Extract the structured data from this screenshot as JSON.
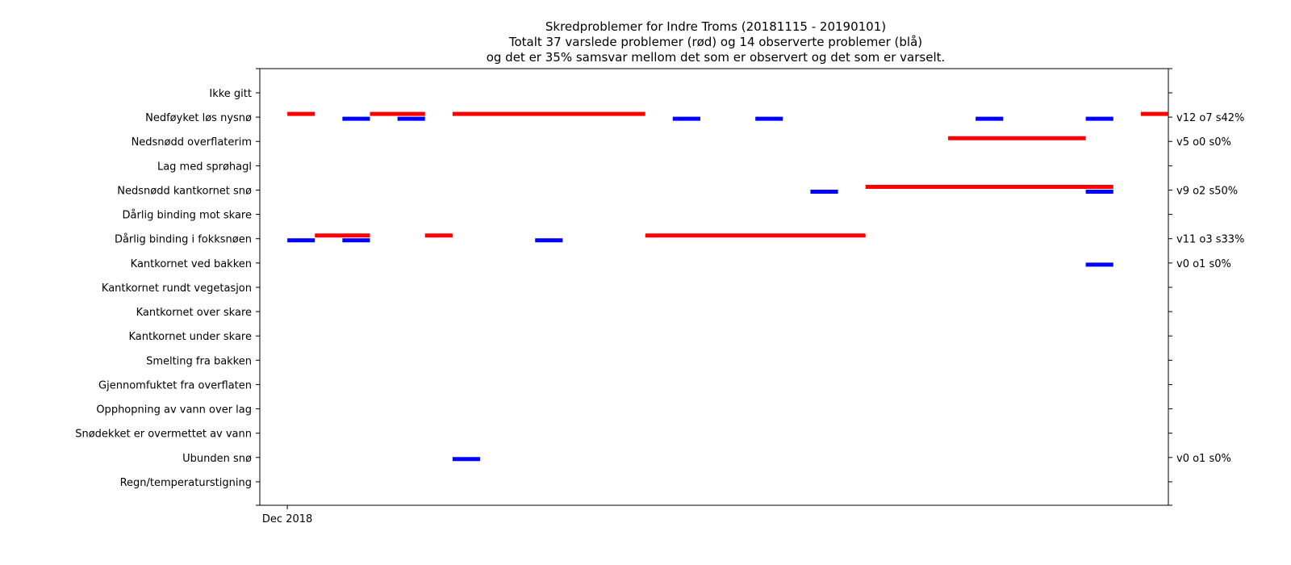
{
  "chart_data": {
    "type": "timeline",
    "title": [
      "Skredproblemer for Indre Troms (20181115 - 20190101)",
      "Totalt 37 varslede problemer (rød) og 14 observerte problemer (blå)",
      "og det er 35% samsvar mellom det som er observert og det som er varselt."
    ],
    "x_tick_labels": [
      {
        "date": "2018-12-01",
        "label": "Dec 2018"
      }
    ],
    "xlim": [
      "2018-11-30",
      "2019-01-02"
    ],
    "categories": [
      "Ikke gitt",
      "Nedføyket løs nysnø",
      "Nedsnødd overflaterim",
      "Lag med sprøhagl",
      "Nedsnødd kantkornet snø",
      "Dårlig binding mot skare",
      "Dårlig binding i fokksnøen",
      "Kantkornet ved bakken",
      "Kantkornet rundt vegetasjon",
      "Kantkornet over skare",
      "Kantkornet under skare",
      "Smelting fra bakken",
      "Gjennomfuktet fra overflaten",
      "Opphopning av vann over lag",
      "Snødekket er overmettet av vann",
      "Ubunden snø",
      "Regn/temperaturstigning"
    ],
    "right_labels": [
      {
        "category": "Nedføyket løs nysnø",
        "text": "v12 o7 s42%"
      },
      {
        "category": "Nedsnødd overflaterim",
        "text": "v5 o0 s0%"
      },
      {
        "category": "Nedsnødd kantkornet snø",
        "text": "v9 o2 s50%"
      },
      {
        "category": "Dårlig binding i fokksnøen",
        "text": "v11 o3 s33%"
      },
      {
        "category": "Kantkornet ved bakken",
        "text": "v0 o1 s0%"
      },
      {
        "category": "Ubunden snø",
        "text": "v0 o1 s0%"
      }
    ],
    "series": [
      {
        "kind": "forecast",
        "color": "#ff0000",
        "segments": [
          {
            "category": "Nedføyket løs nysnø",
            "start": "2018-12-01",
            "end": "2018-12-02"
          },
          {
            "category": "Nedføyket løs nysnø",
            "start": "2018-12-04",
            "end": "2018-12-06"
          },
          {
            "category": "Nedføyket løs nysnø",
            "start": "2018-12-07",
            "end": "2018-12-14"
          },
          {
            "category": "Nedføyket løs nysnø",
            "start": "2019-01-01",
            "end": "2019-01-03"
          },
          {
            "category": "Nedsnødd overflaterim",
            "start": "2018-12-25",
            "end": "2018-12-30"
          },
          {
            "category": "Nedsnødd kantkornet snø",
            "start": "2018-12-22",
            "end": "2018-12-31"
          },
          {
            "category": "Dårlig binding i fokksnøen",
            "start": "2018-12-02",
            "end": "2018-12-04"
          },
          {
            "category": "Dårlig binding i fokksnøen",
            "start": "2018-12-06",
            "end": "2018-12-07"
          },
          {
            "category": "Dårlig binding i fokksnøen",
            "start": "2018-12-14",
            "end": "2018-12-22"
          }
        ]
      },
      {
        "kind": "observed",
        "color": "#0000ff",
        "segments": [
          {
            "category": "Nedføyket løs nysnø",
            "start": "2018-12-03",
            "end": "2018-12-04"
          },
          {
            "category": "Nedføyket løs nysnø",
            "start": "2018-12-05",
            "end": "2018-12-06"
          },
          {
            "category": "Nedføyket løs nysnø",
            "start": "2018-12-15",
            "end": "2018-12-16"
          },
          {
            "category": "Nedføyket løs nysnø",
            "start": "2018-12-18",
            "end": "2018-12-19"
          },
          {
            "category": "Nedføyket løs nysnø",
            "start": "2018-12-26",
            "end": "2018-12-27"
          },
          {
            "category": "Nedføyket løs nysnø",
            "start": "2018-12-30",
            "end": "2018-12-31"
          },
          {
            "category": "Nedsnødd kantkornet snø",
            "start": "2018-12-20",
            "end": "2018-12-21"
          },
          {
            "category": "Nedsnødd kantkornet snø",
            "start": "2018-12-30",
            "end": "2018-12-31"
          },
          {
            "category": "Dårlig binding i fokksnøen",
            "start": "2018-12-01",
            "end": "2018-12-02"
          },
          {
            "category": "Dårlig binding i fokksnøen",
            "start": "2018-12-03",
            "end": "2018-12-04"
          },
          {
            "category": "Dårlig binding i fokksnøen",
            "start": "2018-12-10",
            "end": "2018-12-11"
          },
          {
            "category": "Kantkornet ved bakken",
            "start": "2018-12-30",
            "end": "2018-12-31"
          },
          {
            "category": "Ubunden snø",
            "start": "2018-12-07",
            "end": "2018-12-08"
          }
        ]
      }
    ]
  }
}
